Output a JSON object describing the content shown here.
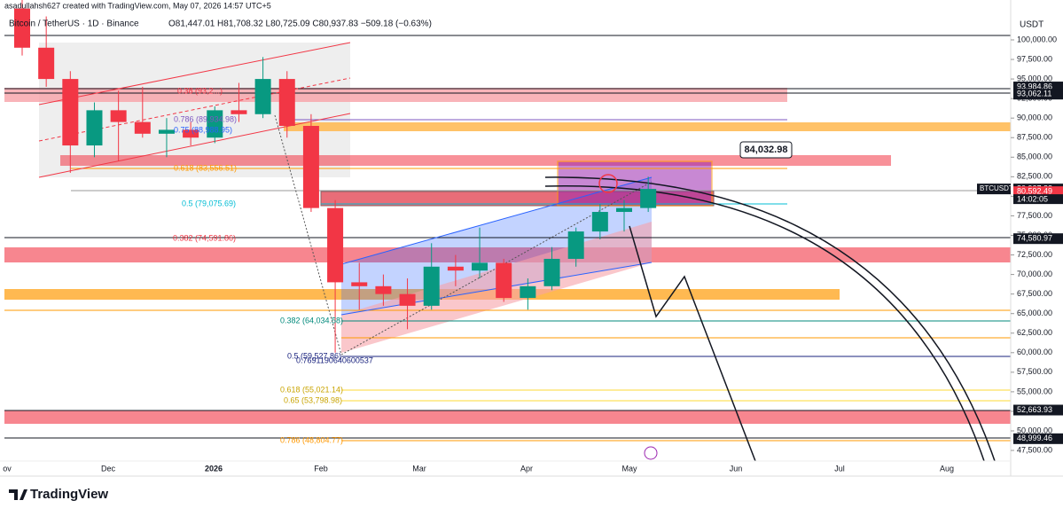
{
  "header": {
    "credit": "asadullahsh627 created with TradingView.com, May 07, 2026 14:57 UTC+5",
    "symbol": "Bitcoin / TetherUS · 1D · Binance",
    "ohlc": "O81,447.01 H81,708.32 L80,725.09 C80,937.83 −509.18 (−0.63%)"
  },
  "price_axis": {
    "currency": "USDT",
    "ylim": [
      46145,
      105100
    ],
    "ticks": [
      {
        "value": 100000,
        "label": "100,000.00"
      },
      {
        "value": 97500,
        "label": "97,500.00"
      },
      {
        "value": 95000,
        "label": "95,000.00"
      },
      {
        "value": 92500,
        "label": "92,500.00"
      },
      {
        "value": 90000,
        "label": "90,000.00"
      },
      {
        "value": 87500,
        "label": "87,500.00"
      },
      {
        "value": 85000,
        "label": "85,000.00"
      },
      {
        "value": 82500,
        "label": "82,500.00"
      },
      {
        "value": 80000,
        "label": "80,000.00"
      },
      {
        "value": 77500,
        "label": "77,500.00"
      },
      {
        "value": 75000,
        "label": "75,000.00"
      },
      {
        "value": 72500,
        "label": "72,500.00"
      },
      {
        "value": 70000,
        "label": "70,000.00"
      },
      {
        "value": 67500,
        "label": "67,500.00"
      },
      {
        "value": 65000,
        "label": "65,000.00"
      },
      {
        "value": 62500,
        "label": "62,500.00"
      },
      {
        "value": 60000,
        "label": "60,000.00"
      },
      {
        "value": 57500,
        "label": "57,500.00"
      },
      {
        "value": 55000,
        "label": "55,000.00"
      },
      {
        "value": 52500,
        "label": "52,500.00"
      },
      {
        "value": 50000,
        "label": "50,000.00"
      },
      {
        "value": 47500,
        "label": "47,500.00"
      }
    ],
    "markers": [
      {
        "value": 93984.86,
        "label": "93,984.86",
        "color": "#131722"
      },
      {
        "value": 93062.11,
        "label": "93,062.11",
        "color": "#131722"
      },
      {
        "value": 80937.83,
        "label": "80,937.83",
        "color": "#131722"
      },
      {
        "value": 80592.49,
        "label": "80,592.49",
        "color": "#f23645"
      },
      {
        "value": 74580.97,
        "label": "74,580.97",
        "color": "#131722"
      },
      {
        "value": 52663.93,
        "label": "52,663.93",
        "color": "#131722"
      },
      {
        "value": 48999.46,
        "label": "48,999.46",
        "color": "#131722"
      }
    ],
    "symbol_tag": "BTCUSDT",
    "countdown": "14:02:05"
  },
  "time_axis": {
    "labels": [
      "ov",
      "Dec",
      "2026",
      "Feb",
      "Mar",
      "Apr",
      "May",
      "Jun",
      "Jul",
      "Aug"
    ]
  },
  "candles": [
    {
      "open": 104000,
      "high": 106000,
      "low": 98000,
      "close": 99000
    },
    {
      "open": 99000,
      "high": 103000,
      "low": 94000,
      "close": 95000
    },
    {
      "open": 95000,
      "high": 96000,
      "low": 83000,
      "close": 86500
    },
    {
      "open": 86500,
      "high": 92000,
      "low": 85000,
      "close": 91000
    },
    {
      "open": 91000,
      "high": 93500,
      "low": 84500,
      "close": 89500
    },
    {
      "open": 89500,
      "high": 94000,
      "low": 87500,
      "close": 88000
    },
    {
      "open": 88000,
      "high": 90000,
      "low": 85000,
      "close": 88500
    },
    {
      "open": 88500,
      "high": 89500,
      "low": 86500,
      "close": 87500
    },
    {
      "open": 87500,
      "high": 91500,
      "low": 86800,
      "close": 91000
    },
    {
      "open": 91000,
      "high": 94500,
      "low": 89500,
      "close": 90500
    },
    {
      "open": 90500,
      "high": 97800,
      "low": 90000,
      "close": 95000
    },
    {
      "open": 95000,
      "high": 96000,
      "low": 87500,
      "close": 89000
    },
    {
      "open": 89000,
      "high": 90500,
      "low": 78000,
      "close": 78500
    },
    {
      "open": 78500,
      "high": 79500,
      "low": 60000,
      "close": 69000
    },
    {
      "open": 69000,
      "high": 71500,
      "low": 65500,
      "close": 68500
    },
    {
      "open": 68500,
      "high": 70000,
      "low": 66000,
      "close": 67500
    },
    {
      "open": 67500,
      "high": 69500,
      "low": 63000,
      "close": 66000
    },
    {
      "open": 66000,
      "high": 74000,
      "low": 65500,
      "close": 71000
    },
    {
      "open": 71000,
      "high": 72500,
      "low": 68500,
      "close": 70500
    },
    {
      "open": 70500,
      "high": 76000,
      "low": 69500,
      "close": 71500
    },
    {
      "open": 71500,
      "high": 72000,
      "low": 66500,
      "close": 67000
    },
    {
      "open": 67000,
      "high": 69500,
      "low": 65500,
      "close": 68500
    },
    {
      "open": 68500,
      "high": 73500,
      "low": 68000,
      "close": 72000
    },
    {
      "open": 72000,
      "high": 76000,
      "low": 71000,
      "close": 75500
    },
    {
      "open": 75500,
      "high": 79000,
      "low": 74500,
      "close": 78000
    },
    {
      "open": 78000,
      "high": 79500,
      "low": 75500,
      "close": 78500
    },
    {
      "open": 78500,
      "high": 82500,
      "low": 78000,
      "close": 80937.83
    }
  ],
  "annotations": {
    "target": "84,032.98",
    "fib_labels": [
      "0.38 (93,2...)",
      "0.786 (89,934.98)",
      "0.75 (88,988.95)",
      "0.618 (83,556.51)",
      "0.5 (79,075.69)",
      "0.382 (74,591.86)",
      "0.382 (64,034.58)",
      "0.5 (59,527.86)",
      "0.7691190640600537",
      "0.618 (55,021.14)",
      "0.65 (53,798.98)",
      "0.786 (48,804.77)"
    ]
  },
  "footer": {
    "brand": "TradingView"
  }
}
